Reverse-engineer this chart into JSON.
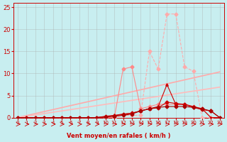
{
  "xlabel": "Vent moyen/en rafales ( km/h )",
  "bg_color": "#c8eef0",
  "grid_color": "#aaaaaa",
  "xlim": [
    -0.5,
    23.5
  ],
  "ylim": [
    0,
    26
  ],
  "yticks": [
    0,
    5,
    10,
    15,
    20,
    25
  ],
  "xticks": [
    0,
    1,
    2,
    3,
    4,
    5,
    6,
    7,
    8,
    9,
    10,
    11,
    12,
    13,
    14,
    15,
    16,
    17,
    18,
    19,
    20,
    21,
    22,
    23
  ],
  "x_values": [
    0,
    1,
    2,
    3,
    4,
    5,
    6,
    7,
    8,
    9,
    10,
    11,
    12,
    13,
    14,
    15,
    16,
    17,
    18,
    19,
    20,
    21,
    22,
    23
  ],
  "line_diagonal1_y": [
    0,
    0.45,
    0.9,
    1.35,
    1.8,
    2.25,
    2.7,
    3.15,
    3.6,
    4.05,
    4.5,
    4.95,
    5.4,
    5.85,
    6.3,
    6.75,
    7.2,
    7.65,
    8.1,
    8.55,
    9.0,
    9.45,
    9.9,
    10.35
  ],
  "line_diagonal2_y": [
    0,
    0.3,
    0.6,
    0.9,
    1.2,
    1.5,
    1.8,
    2.1,
    2.4,
    2.7,
    3.0,
    3.3,
    3.6,
    3.9,
    4.2,
    4.5,
    4.8,
    5.1,
    5.4,
    5.7,
    6.0,
    6.3,
    6.6,
    6.9
  ],
  "line_diagonal1_color": "#ffaaaa",
  "line_diagonal2_color": "#ffbbbb",
  "line_diag_lw": 1.2,
  "line_pink_dashed_y": [
    0,
    0,
    0,
    0,
    0,
    0,
    0,
    0,
    0,
    0,
    0,
    0,
    0.5,
    0.5,
    0.5,
    15.0,
    11.0,
    23.5,
    23.5,
    11.5,
    10.5,
    0,
    0,
    0
  ],
  "line_pink_dashed_color": "#ffaaaa",
  "line_pink_dashed_lw": 0.8,
  "line_pink_solid_y": [
    0,
    0,
    0,
    0,
    0,
    0,
    0,
    0,
    0,
    0,
    0,
    0,
    11.0,
    11.5,
    2.0,
    2.5,
    3.0,
    3.0,
    3.0,
    3.0,
    2.5,
    2.0,
    0,
    0
  ],
  "line_pink_solid_color": "#ff8888",
  "line_pink_solid_lw": 0.8,
  "line_red1_y": [
    0,
    0,
    0,
    0,
    0,
    0,
    0,
    0,
    0,
    0,
    0.3,
    0.5,
    0.8,
    1.0,
    1.5,
    2.0,
    2.5,
    7.5,
    3.0,
    3.0,
    2.5,
    2.0,
    0,
    0
  ],
  "line_red1_color": "#cc0000",
  "line_red1_lw": 0.8,
  "line_red2_y": [
    0,
    0,
    0,
    0,
    0,
    0,
    0,
    0,
    0,
    0,
    0.2,
    0.4,
    0.7,
    1.0,
    1.5,
    2.0,
    2.2,
    3.5,
    3.2,
    3.0,
    2.3,
    1.8,
    1.5,
    0
  ],
  "line_red2_color": "#cc0000",
  "line_red2_lw": 0.8,
  "line_darkred_y": [
    0,
    0,
    0,
    0,
    0,
    0,
    0,
    0,
    0,
    0,
    0.1,
    0.3,
    0.5,
    0.8,
    1.5,
    2.0,
    2.3,
    2.5,
    2.5,
    2.5,
    2.3,
    2.0,
    1.5,
    0
  ],
  "line_darkred_color": "#aa0000",
  "line_darkred_lw": 0.8,
  "marker_size": 2.5,
  "xlabel_color": "#cc0000",
  "tick_color": "#cc0000",
  "axis_color": "#cc0000"
}
